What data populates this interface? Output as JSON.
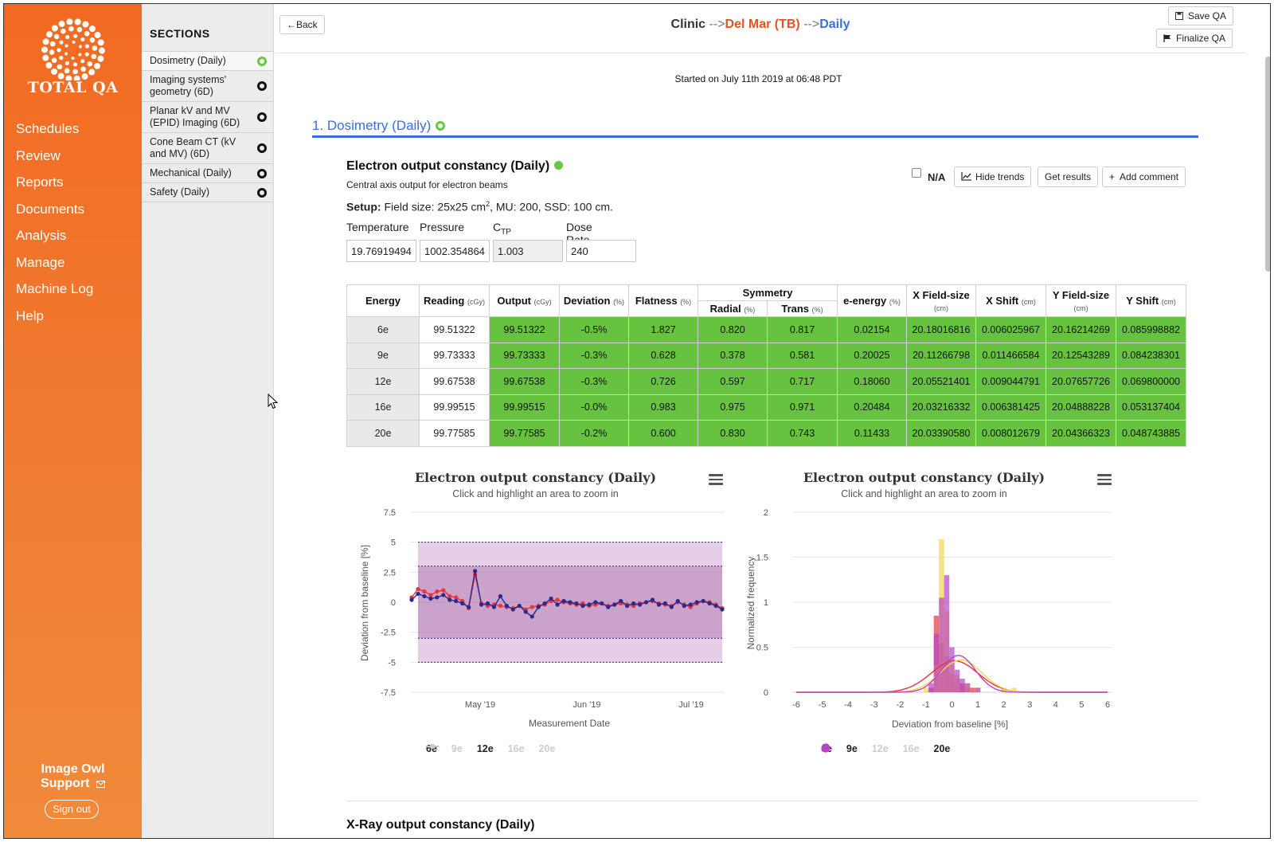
{
  "nav": {
    "logo_text": "TOTAL QA",
    "items": [
      "Schedules",
      "Review",
      "Reports",
      "Documents",
      "Analysis",
      "Manage",
      "Machine Log",
      "Help"
    ],
    "support_line1": "Image Owl",
    "support_line2": "Support",
    "signout": "Sign out"
  },
  "sections": {
    "heading": "SECTIONS",
    "items": [
      {
        "label": "Dosimetry (Daily)",
        "status": "green"
      },
      {
        "label": "Imaging systems' geometry (6D)",
        "status": "black"
      },
      {
        "label": "Planar kV and MV (EPID) Imaging (6D)",
        "status": "black"
      },
      {
        "label": "Cone Beam CT (kV and MV) (6D)",
        "status": "black"
      },
      {
        "label": "Mechanical (Daily)",
        "status": "black"
      },
      {
        "label": "Safety (Daily)",
        "status": "black"
      }
    ]
  },
  "topbar": {
    "back": "Back",
    "save": "Save QA",
    "finalize": "Finalize QA",
    "bc_clinic": "Clinic",
    "bc_site": "Del Mar (TB)",
    "bc_daily": "Daily",
    "arrow": "-->"
  },
  "started": "Started on July 11th 2019 at 06:48 PDT",
  "section_title": "1. Dosimetry (Daily)",
  "test": {
    "title": "Electron output constancy (Daily)",
    "description": "Central axis output for electron beams",
    "setup_label": "Setup:",
    "setup_text": "Field size: 25x25 cm",
    "setup_sup": "2",
    "setup_rest": ", MU: 200, SSD: 100 cm.",
    "na_label": "N/A",
    "hide_trends": "Hide trends",
    "get_results": "Get results",
    "add_comment": "Add comment",
    "fields": {
      "temperature_label": "Temperature",
      "temperature": "19.76919494",
      "pressure_label": "Pressure",
      "pressure": "1002.354864",
      "ctp_label": "C",
      "ctp_sub": "TP",
      "ctp": "1.003",
      "dose_rate_label": "Dose Rate",
      "dose_rate": "240"
    }
  },
  "table": {
    "headers": {
      "energy": "Energy",
      "reading": "Reading",
      "reading_unit": "(cGy)",
      "output": "Output",
      "output_unit": "(cGy)",
      "deviation": "Deviation",
      "deviation_unit": "(%)",
      "flatness": "Flatness",
      "flatness_unit": "(%)",
      "symmetry": "Symmetry",
      "radial": "Radial",
      "radial_unit": "(%)",
      "trans": "Trans",
      "trans_unit": "(%)",
      "eenergy": "e-energy",
      "eenergy_unit": "(%)",
      "xfs": "X Field-size",
      "xfs_unit": "(cm)",
      "xshift": "X Shift",
      "xshift_unit": "(cm)",
      "yfs": "Y Field-size",
      "yfs_unit": "(cm)",
      "yshift": "Y Shift",
      "yshift_unit": "(cm)"
    },
    "rows": [
      [
        "6e",
        "99.51322",
        "99.51322",
        "-0.5%",
        "1.827",
        "0.820",
        "0.817",
        "0.02154",
        "20.18016816",
        "0.006025967",
        "20.16214269",
        "0.085998882"
      ],
      [
        "9e",
        "99.73333",
        "99.73333",
        "-0.3%",
        "0.628",
        "0.378",
        "0.581",
        "0.20025",
        "20.11266798",
        "0.011466584",
        "20.12543289",
        "0.084238301"
      ],
      [
        "12e",
        "99.67538",
        "99.67538",
        "-0.3%",
        "0.726",
        "0.597",
        "0.717",
        "0.18060",
        "20.05521401",
        "0.009044791",
        "20.07657726",
        "0.069800000"
      ],
      [
        "16e",
        "99.99515",
        "99.99515",
        "-0.0%",
        "0.983",
        "0.975",
        "0.971",
        "0.20484",
        "20.03216332",
        "0.006381425",
        "20.04888228",
        "0.053137404"
      ],
      [
        "20e",
        "99.77585",
        "99.77585",
        "-0.2%",
        "0.600",
        "0.830",
        "0.743",
        "0.11433",
        "20.03390580",
        "0.008012679",
        "20.04366323",
        "0.048743885"
      ]
    ]
  },
  "chart_data": [
    {
      "type": "line",
      "title": "Electron output constancy (Daily)",
      "subtitle": "Click and highlight an area to zoom in",
      "xlabel": "Measurement Date",
      "ylabel": "Deviation from baseline [%]",
      "ylim": [
        -7.5,
        7.5
      ],
      "yticks": [
        -7.5,
        -5,
        -2.5,
        0,
        2.5,
        5,
        7.5
      ],
      "xticks": [
        "May '19",
        "Jun '19",
        "Jul '19"
      ],
      "bands": {
        "tolerance": [
          -3,
          3
        ],
        "action": [
          -5,
          5
        ]
      },
      "legend": [
        "6e",
        "9e",
        "12e",
        "16e",
        "20e"
      ],
      "legend_visible": [
        true,
        false,
        true,
        false,
        false
      ],
      "colors": {
        "6e": "#e8333b",
        "9e": "#bbbbbb",
        "12e": "#2b2a8a",
        "16e": "#bbbbbb",
        "20e": "#bbbbbb"
      },
      "series": [
        {
          "name": "6e",
          "values": [
            0.4,
            1.1,
            0.9,
            0.6,
            0.9,
            1.0,
            0.5,
            0.4,
            0.1,
            -0.5,
            2.3,
            -0.1,
            -0.3,
            -0.2,
            -0.3,
            -0.4,
            -0.5,
            -0.3,
            -0.6,
            -0.4,
            -0.3,
            -0.2,
            0.1,
            0.2,
            0.0,
            -0.1,
            -0.2,
            -0.1,
            -0.3,
            -0.2,
            -0.1,
            -0.3,
            -0.2,
            -0.1,
            -0.2,
            -0.3,
            -0.1,
            0.0,
            0.1,
            -0.1,
            -0.2,
            -0.3,
            0.0,
            -0.2,
            -0.4,
            -0.1,
            0.1,
            0.0,
            -0.2,
            -0.5
          ]
        },
        {
          "name": "12e",
          "values": [
            0.2,
            0.7,
            0.5,
            0.3,
            0.4,
            0.6,
            0.2,
            0.1,
            -0.1,
            -0.4,
            2.6,
            -0.2,
            -0.1,
            -0.4,
            0.5,
            -0.3,
            -0.6,
            -0.3,
            -0.8,
            -1.2,
            -0.4,
            -0.1,
            0.3,
            -0.2,
            0.1,
            0.0,
            -0.1,
            -0.3,
            -0.2,
            0.0,
            -0.1,
            -0.4,
            -0.2,
            0.1,
            -0.3,
            -0.1,
            -0.2,
            0.0,
            0.2,
            -0.2,
            -0.1,
            -0.4,
            0.1,
            -0.3,
            -0.2,
            0.0,
            0.1,
            -0.1,
            -0.3,
            -0.6
          ]
        }
      ]
    },
    {
      "type": "bar",
      "title": "Electron output constancy (Daily)",
      "subtitle": "Click and highlight an area to zoom in",
      "xlabel": "Deviation from baseline [%]",
      "ylabel": "Normalized frequency",
      "ylim": [
        0,
        2
      ],
      "yticks": [
        0,
        0.5,
        1,
        1.5,
        2
      ],
      "xticks": [
        -6,
        -5,
        -4,
        -3,
        -2,
        -1,
        0,
        1,
        2,
        3,
        4,
        5,
        6
      ],
      "legend": [
        "6e",
        "9e",
        "12e",
        "16e",
        "20e"
      ],
      "legend_visible": [
        true,
        true,
        false,
        false,
        true
      ],
      "colors": {
        "6e": "#e8333b",
        "9e": "#f5d547",
        "12e": "#cccccc",
        "16e": "#cccccc",
        "20e": "#b845c8"
      },
      "bin_width": 0.2,
      "series": [
        {
          "name": "6e",
          "x": [
            -0.8,
            -0.6,
            -0.4,
            -0.2,
            0.0,
            0.2,
            0.4,
            0.6,
            0.8
          ],
          "values": [
            0.05,
            0.85,
            0.55,
            0.4,
            0.2,
            0.15,
            0.1,
            0.05,
            0.05
          ],
          "fit": {
            "mean": 0.1,
            "sd": 0.9,
            "peak": 0.35
          }
        },
        {
          "name": "9e",
          "x": [
            -1.0,
            -0.6,
            -0.4,
            -0.2,
            0.0,
            0.2,
            0.6,
            1.0,
            2.0,
            2.4
          ],
          "values": [
            0.05,
            0.3,
            1.7,
            0.9,
            0.3,
            0.2,
            0.1,
            0.05,
            0.05,
            0.05
          ],
          "fit": {
            "mean": 0.35,
            "sd": 0.8,
            "peak": 0.36
          }
        },
        {
          "name": "20e",
          "x": [
            -0.8,
            -0.6,
            -0.4,
            -0.2,
            0.0,
            0.2,
            0.4,
            0.6,
            1.0
          ],
          "values": [
            0.1,
            0.65,
            1.05,
            1.3,
            0.5,
            0.25,
            0.15,
            0.1,
            0.05
          ],
          "fit": {
            "mean": 0.25,
            "sd": 0.65,
            "peak": 0.41
          }
        }
      ]
    }
  ],
  "next_title": "X-Ray output constancy (Daily)"
}
